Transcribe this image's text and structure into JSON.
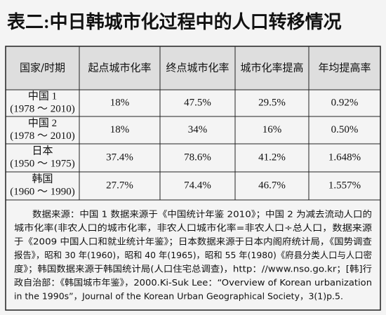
{
  "title": "表二:中日韩城市化过程中的人口转移情况",
  "table": {
    "header": [
      "国家/时期",
      "起点城市化率",
      "终点城市化率",
      "城市化率提高",
      "年均提高率"
    ],
    "rows": [
      [
        [
          "中国 1",
          "(1978 ～ 2010)"
        ],
        "18%",
        "47.5%",
        "29.5%",
        "0.92%"
      ],
      [
        [
          "中国 2",
          "(1978 ～ 2010)"
        ],
        "18%",
        "34%",
        "16%",
        "0.50%"
      ],
      [
        [
          "日本",
          "(1950 ～ 1975)"
        ],
        "37.4%",
        "78.6%",
        "41.2%",
        "1.648%"
      ],
      [
        [
          "韩国",
          "(1960 ～ 1990)"
        ],
        "27.7%",
        "74.4%",
        "46.7%",
        "1.557%"
      ]
    ]
  },
  "note": [
    "数据来源：中国 1 数据来源于《中国统计年鉴 2010》；中国 2 为减去流动人口的",
    "城市化率(非农人口的城市化率，非农人口城市化率=非农人口÷总人口，数据来源",
    "于《2009 中国人口和就业统计年鉴》；日本数据来源于日本内阁府统计局，《国势调查",
    "报告》，昭和 30 年(1960)，昭和 40 年(1965)，昭和 55 年(1980)《府县分类人口与人口密",
    "度》；韩国数据来源于韩国统计局(人口住宅总调查)，http：//www.nso.go.kr；[韩]行",
    "政自治部：《韩国城市年鉴》，2000.Ki-Suk Lee：“Overview of Korean urbanization",
    "in the 1990s”，Journal of the Korean Urban Geographical Society，3(1)p.5."
  ]
}
